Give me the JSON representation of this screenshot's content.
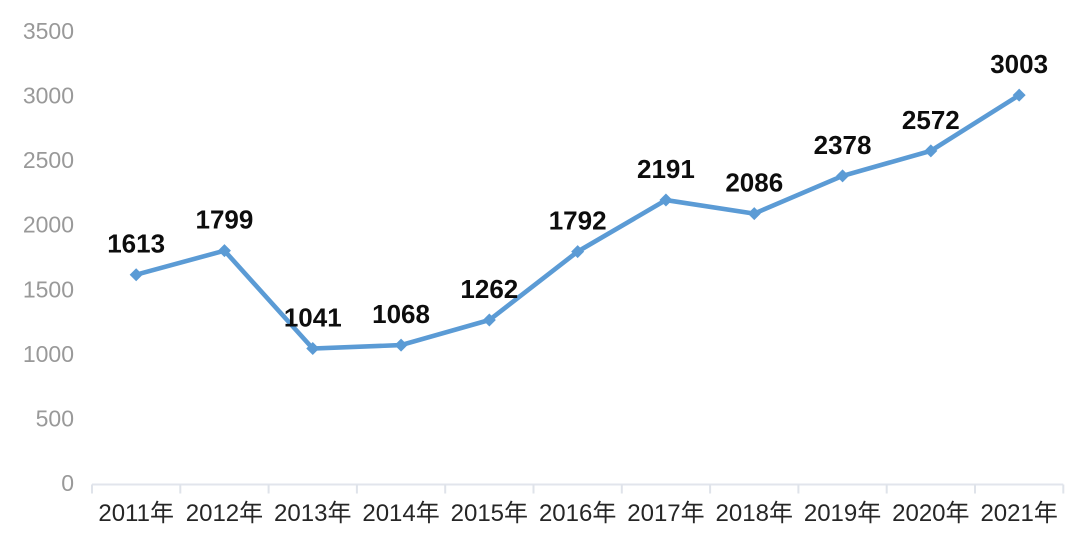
{
  "chart_data": {
    "type": "line",
    "title": "",
    "xlabel": "",
    "ylabel": "",
    "categories": [
      "2011年",
      "2012年",
      "2013年",
      "2014年",
      "2015年",
      "2016年",
      "2017年",
      "2018年",
      "2019年",
      "2020年",
      "2021年"
    ],
    "values": [
      1613,
      1799,
      1041,
      1068,
      1262,
      1792,
      2191,
      2086,
      2378,
      2572,
      3003
    ],
    "ylim": [
      0,
      3500
    ],
    "y_ticks": [
      0,
      500,
      1000,
      1500,
      2000,
      2500,
      3000,
      3500
    ],
    "grid": false,
    "legend_position": "none",
    "marker": "diamond",
    "data_labels_visible": true
  },
  "colors": {
    "series_line": "#5B9BD5",
    "marker_fill": "#5B9BD5",
    "axis_line": "#e2e5ec",
    "tick_mark": "#dfe3ea",
    "y_tick_label": "#999999",
    "x_tick_label": "#262626",
    "data_label": "#0d0d0d",
    "background": "#ffffff"
  }
}
